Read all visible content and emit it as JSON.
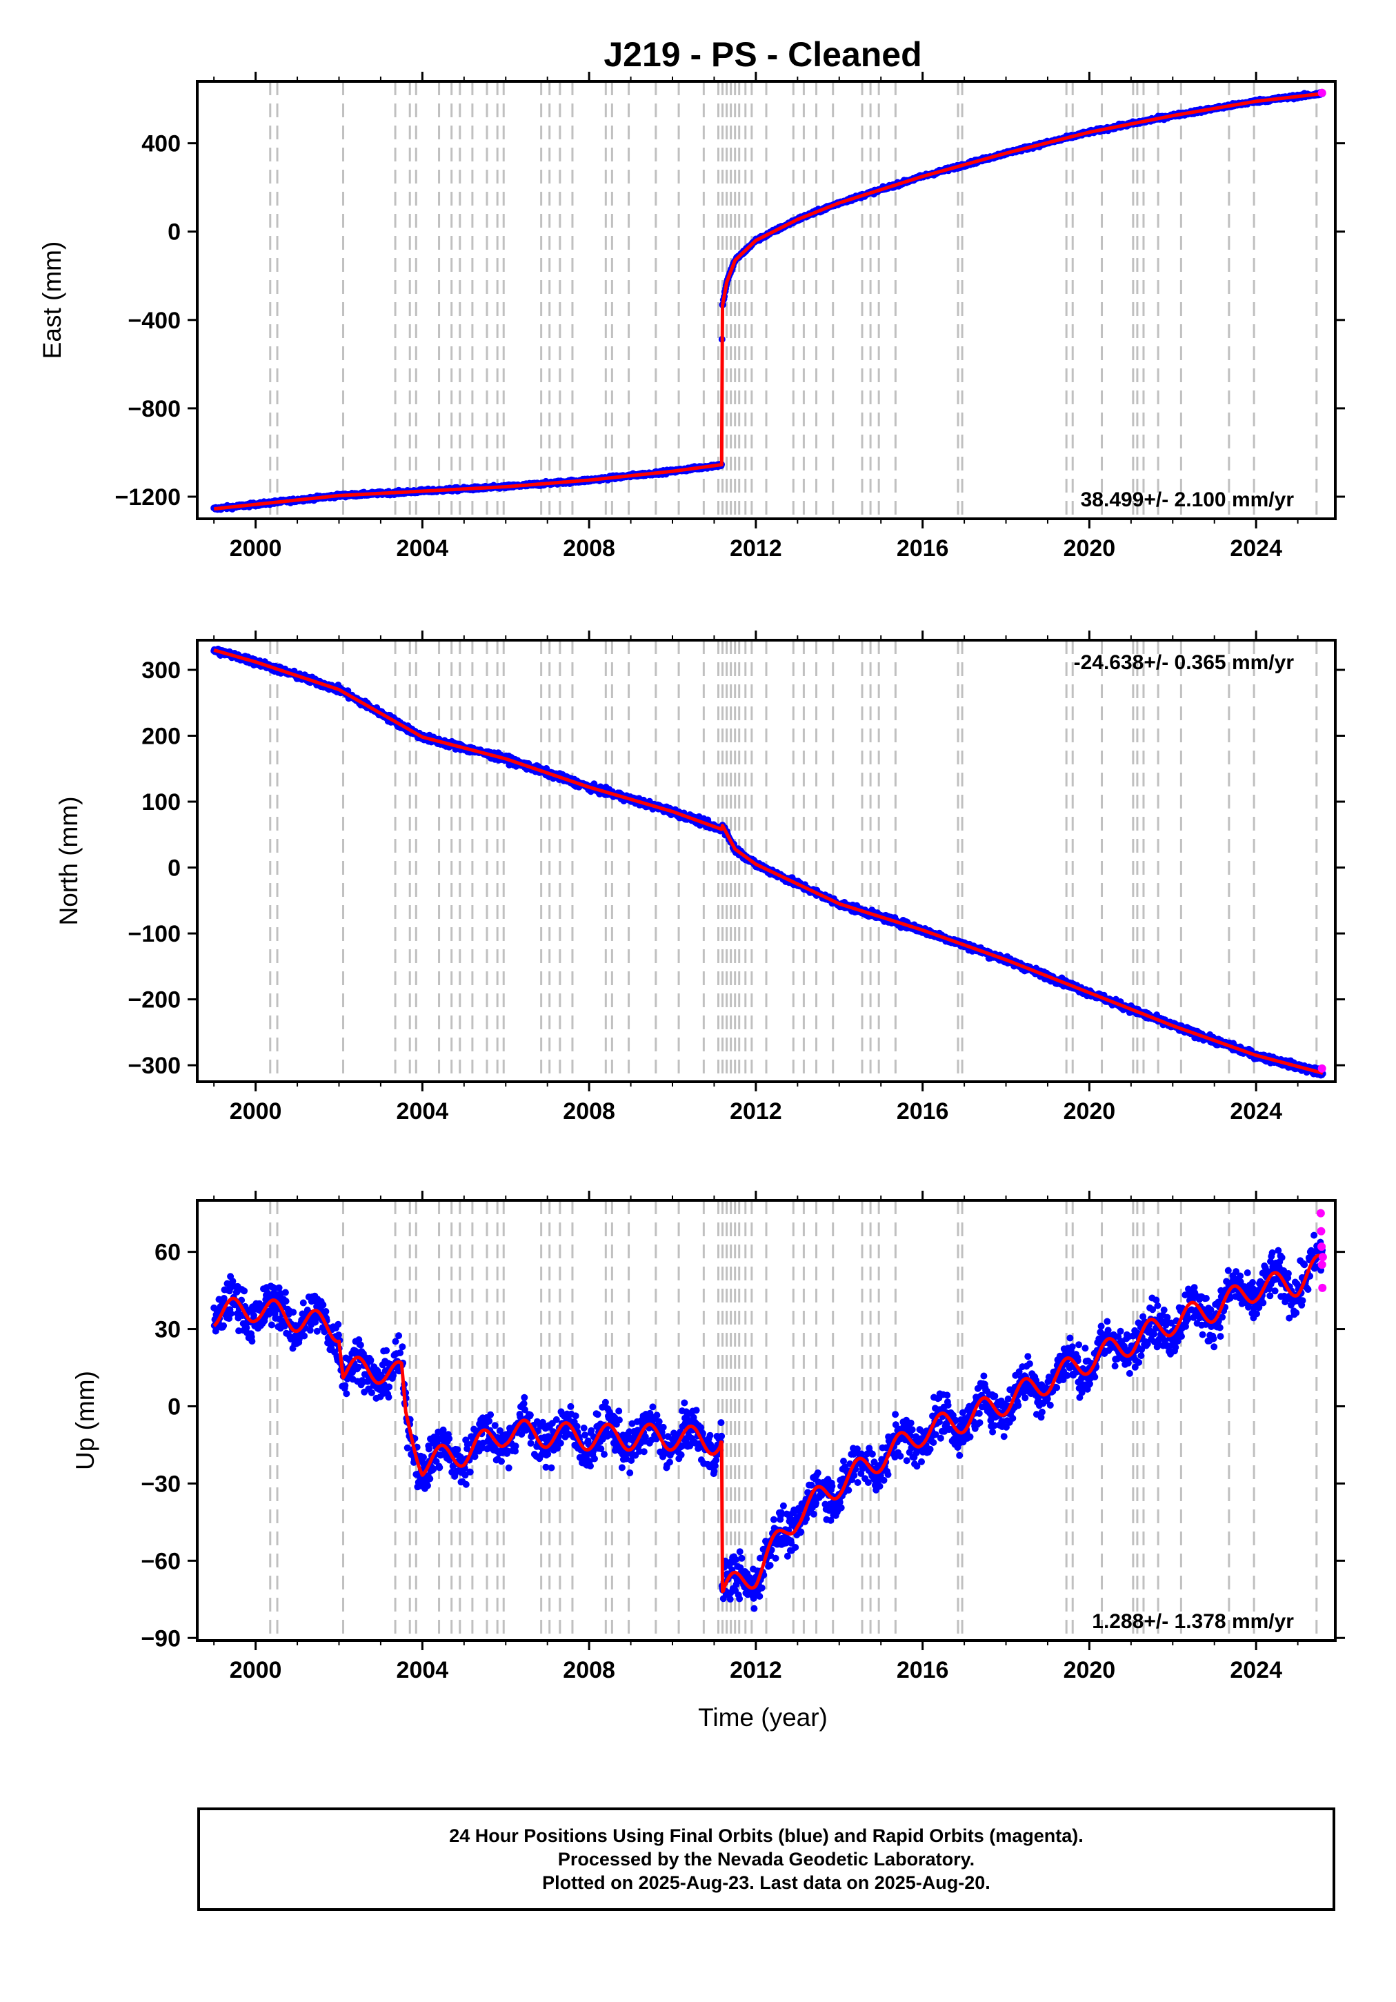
{
  "title": "J219  - PS - Cleaned",
  "colors": {
    "final_orbits": "#0000ff",
    "rapid_orbits": "#ff00ff",
    "model": "#ff0000",
    "event_lines": "#c0c0c0",
    "frame": "#000000"
  },
  "xaxis": {
    "label": "Time (year)",
    "range": [
      1998.6,
      2025.9
    ],
    "ticks": [
      2000,
      2004,
      2008,
      2012,
      2016,
      2020,
      2024
    ],
    "tick_labels": [
      "2000",
      "2004",
      "2008",
      "2012",
      "2016",
      "2020",
      "2024"
    ]
  },
  "event_lines": [
    2000.35,
    2000.52,
    2002.1,
    2003.35,
    2003.7,
    2003.85,
    2004.4,
    2004.7,
    2004.9,
    2005.2,
    2005.55,
    2005.8,
    2005.95,
    2006.85,
    2007.05,
    2007.3,
    2007.6,
    2008.4,
    2008.55,
    2008.95,
    2009.6,
    2010.15,
    2010.75,
    2011.1,
    2011.2,
    2011.3,
    2011.4,
    2011.5,
    2011.6,
    2011.75,
    2011.9,
    2012.25,
    2012.9,
    2013.15,
    2013.45,
    2013.85,
    2014.55,
    2014.75,
    2014.95,
    2015.35,
    2016.85,
    2016.95,
    2019.45,
    2019.6,
    2020.3,
    2021.05,
    2021.15,
    2021.3,
    2021.65,
    2022.2,
    2023.35,
    2023.95,
    2025.45
  ],
  "chart_data": [
    {
      "type": "scatter",
      "ylabel": "East (mm)",
      "ylim": [
        -1300,
        680
      ],
      "yticks": [
        -1200,
        -800,
        -400,
        0,
        400
      ],
      "ytick_labels": [
        "−1200",
        "−800",
        "−400",
        "0",
        "400"
      ],
      "rate_label": "38.499+/- 2.100 mm/yr",
      "rate_position": "bottom-right",
      "grid": false,
      "trend_knots": {
        "x": [
          1999.0,
          2000.0,
          2002.0,
          2004.0,
          2006.0,
          2008.0,
          2010.0,
          2011.18,
          2011.19,
          2011.3,
          2011.5,
          2012.0,
          2013.0,
          2014.0,
          2016.0,
          2018.0,
          2020.0,
          2022.0,
          2024.0,
          2025.6
        ],
        "y": [
          -1255,
          -1235,
          -1195,
          -1175,
          -1155,
          -1125,
          -1085,
          -1055,
          -345,
          -230,
          -130,
          -40,
          55,
          130,
          250,
          355,
          450,
          525,
          590,
          625
        ]
      },
      "noise_mm": 6,
      "rapid_end": [
        2025.58,
        628
      ]
    },
    {
      "type": "scatter",
      "ylabel": "North (mm)",
      "ylim": [
        -325,
        345
      ],
      "yticks": [
        -300,
        -200,
        -100,
        0,
        100,
        200,
        300
      ],
      "ytick_labels": [
        "−300",
        "−200",
        "−100",
        "0",
        "100",
        "200",
        "300"
      ],
      "rate_label": "-24.638+/- 0.365 mm/yr",
      "rate_position": "top-right",
      "grid": false,
      "trend_knots": {
        "x": [
          1999.0,
          2000.0,
          2002.0,
          2004.0,
          2006.0,
          2008.0,
          2010.0,
          2011.18,
          2011.19,
          2011.5,
          2012.0,
          2014.0,
          2016.0,
          2018.0,
          2020.0,
          2022.0,
          2024.0,
          2025.6
        ],
        "y": [
          330,
          312,
          270,
          198,
          165,
          122,
          85,
          58,
          65,
          28,
          5,
          -55,
          -95,
          -140,
          -190,
          -240,
          -285,
          -312
        ]
      },
      "noise_mm": 4,
      "rapid_end": [
        2025.58,
        -305
      ]
    },
    {
      "type": "scatter",
      "ylabel": "Up (mm)",
      "xlabel": "Time (year)",
      "ylim": [
        -91,
        80
      ],
      "yticks": [
        -90,
        -60,
        -30,
        0,
        30,
        60
      ],
      "ytick_labels": [
        "−90",
        "−60",
        "−30",
        "0",
        "30",
        "60"
      ],
      "rate_label": "1.288+/- 1.378 mm/yr",
      "rate_position": "bottom-right",
      "grid": false,
      "trend_knots": {
        "x": [
          1999.0,
          2000.0,
          2001.0,
          2002.0,
          2002.1,
          2003.0,
          2003.5,
          2003.6,
          2004.0,
          2005.0,
          2006.0,
          2008.0,
          2010.0,
          2011.18,
          2011.19,
          2012.0,
          2013.0,
          2014.0,
          2015.0,
          2016.0,
          2017.0,
          2018.0,
          2019.0,
          2020.0,
          2021.0,
          2022.0,
          2023.0,
          2024.0,
          2025.0,
          2025.6
        ],
        "y": [
          36,
          38,
          34,
          30,
          14,
          14,
          12,
          -5,
          -22,
          -18,
          -10,
          -12,
          -12,
          -14,
          -72,
          -65,
          -42,
          -30,
          -20,
          -10,
          -5,
          2,
          10,
          18,
          25,
          33,
          38,
          46,
          48,
          55
        ]
      },
      "seasonal_amp": 5,
      "noise_mm": 6,
      "rapid_points": [
        [
          2025.55,
          75
        ],
        [
          2025.56,
          68
        ],
        [
          2025.57,
          62
        ],
        [
          2025.58,
          55
        ],
        [
          2025.59,
          46
        ],
        [
          2025.6,
          58
        ]
      ]
    }
  ],
  "footer": {
    "line1": "24 Hour Positions Using Final Orbits (blue) and Rapid Orbits (magenta).",
    "line2": "Processed by the Nevada Geodetic Laboratory.",
    "line3": "Plotted on 2025-Aug-23. Last data on 2025-Aug-20."
  }
}
